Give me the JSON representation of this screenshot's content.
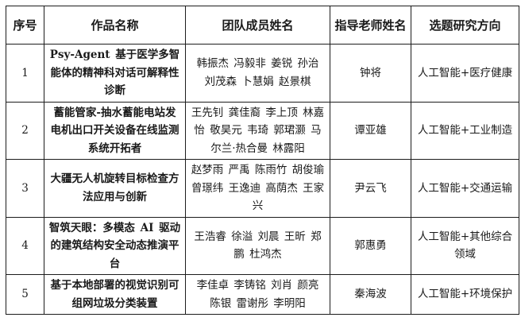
{
  "table": {
    "headers": [
      "序号",
      "作品名称",
      "团队成员姓名",
      "指导老师姓名",
      "选题研究方向"
    ],
    "rows": [
      {
        "no": "1",
        "title": "Psy-Agent 基于医学多智能体的精神科对话可解释性诊断",
        "members": "韩振杰 冯毅非 姜锐 孙治 刘茂森 卜慧娟 赵景棋",
        "advisor": "钟将",
        "direction": "人工智能+医疗健康"
      },
      {
        "no": "2",
        "title": "蓄能管家-抽水蓄能电站发电机出口开关设备在线监测系统开拓者",
        "members": "王先钊 龚佳裔 李上顶 林嘉怡 敬昊元 韦琦 郭珺灏 马尔兰·热合曼 林露阳",
        "advisor": "谭亚雄",
        "direction": "人工智能+工业制造"
      },
      {
        "no": "3",
        "title": "大疆无人机旋转目标检查方法应用与创新",
        "members": "赵梦雨 严禹 陈雨竹 胡俊瑜 曾璟纬 王逸迪 高荫杰 王家兴",
        "advisor": "尹云飞",
        "direction": "人工智能+交通运输"
      },
      {
        "no": "4",
        "title": "智筑天眼：多模态 AI 驱动的建筑结构安全动态推演平台",
        "members": "王浩睿 徐溢 刘晨 王昕 郑鹏 杜鸿杰",
        "advisor": "郭惠勇",
        "direction": "人工智能+其他综合领域"
      },
      {
        "no": "5",
        "title": "基于本地部署的视觉识别可组网垃圾分类装置",
        "members": "李佳卓 李铸铭 刘肖 颜亮 陈银 雷谢彤 李明阳",
        "advisor": "秦海波",
        "direction": "人工智能+环境保护"
      }
    ]
  }
}
